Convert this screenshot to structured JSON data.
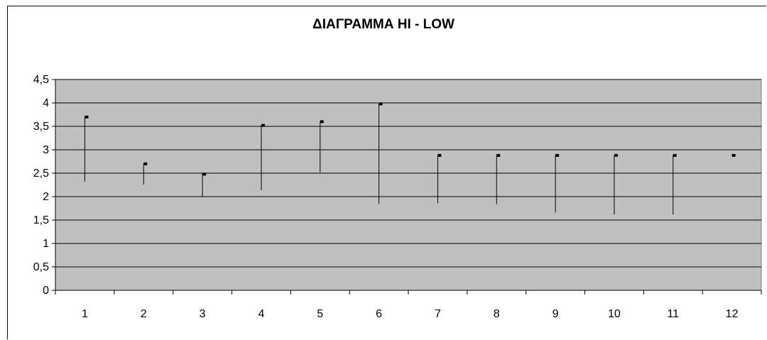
{
  "chart_data": {
    "type": "hi-low",
    "title": "ΔΙΑΓΡΑΜΜΑ  HI - LOW",
    "xlabel": "",
    "ylabel": "",
    "categories": [
      "1",
      "2",
      "3",
      "4",
      "5",
      "6",
      "7",
      "8",
      "9",
      "10",
      "11",
      "12"
    ],
    "yticks": [
      "0",
      "0,5",
      "1",
      "1,5",
      "2",
      "2,5",
      "3",
      "3,5",
      "4",
      "4,5"
    ],
    "ylim": [
      0,
      4.5
    ],
    "grid": true,
    "legend": "none",
    "high": [
      3.7,
      2.7,
      2.48,
      3.52,
      3.6,
      3.98,
      2.88,
      2.88,
      2.88,
      2.88,
      2.88,
      2.88
    ],
    "low": [
      2.32,
      2.26,
      2.0,
      2.14,
      2.52,
      1.84,
      1.86,
      1.84,
      1.66,
      1.62,
      1.62,
      2.88
    ],
    "colors": {
      "plot_area": "#c0c0c0",
      "grid": "#000000",
      "lines": "#000000",
      "markers": "#000000"
    }
  }
}
